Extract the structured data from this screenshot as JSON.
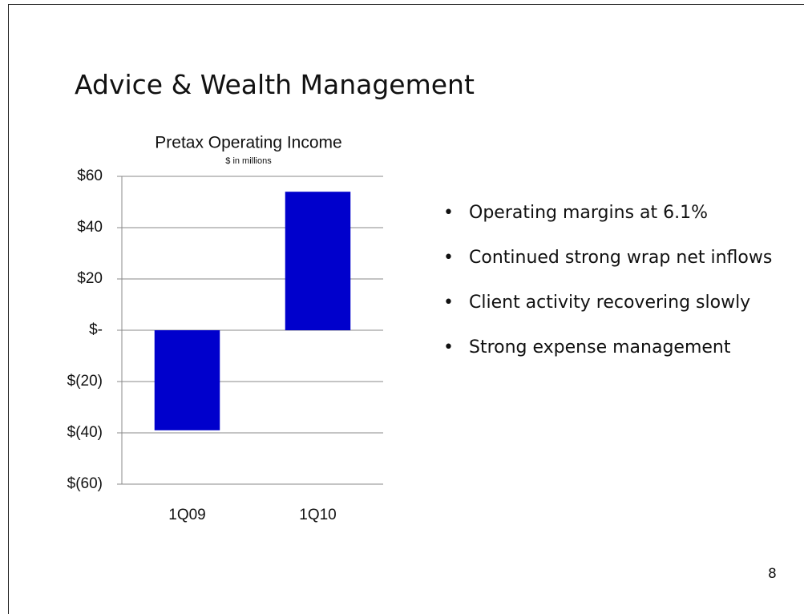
{
  "title": "Advice & Wealth Management",
  "bullets": [
    "Operating margins at 6.1%",
    "Continued strong wrap net inflows",
    "Client activity recovering slowly",
    "Strong expense management"
  ],
  "page_number": "8",
  "chart_data": {
    "type": "bar",
    "title": "Pretax Operating Income",
    "subtitle": "$ in millions",
    "categories": [
      "1Q09",
      "1Q10"
    ],
    "values": [
      -39,
      54
    ],
    "color": "#0000cc",
    "ylim": [
      -60,
      60
    ],
    "yticks": [
      {
        "value": -60,
        "label": "$(60)"
      },
      {
        "value": -40,
        "label": "$(40)"
      },
      {
        "value": -20,
        "label": "$(20)"
      },
      {
        "value": 0,
        "label": "$-"
      },
      {
        "value": 20,
        "label": "$20"
      },
      {
        "value": 40,
        "label": "$40"
      },
      {
        "value": 60,
        "label": "$60"
      }
    ],
    "grid": true
  }
}
